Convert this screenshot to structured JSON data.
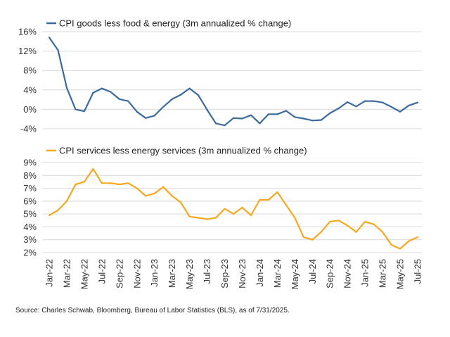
{
  "chart_data": [
    {
      "type": "line",
      "title": "",
      "xlabel": "",
      "ylabel": "",
      "legend": "CPI goods less food & energy (3m annualized % change)",
      "color": "#3b6aa0",
      "ylim": [
        -4,
        16
      ],
      "yticks": [
        "16%",
        "12%",
        "8%",
        "4%",
        "0%",
        "-4%"
      ],
      "ytick_values": [
        16,
        12,
        8,
        4,
        0,
        -4
      ],
      "grid": true,
      "values": [
        14.8,
        12.2,
        4.4,
        0.0,
        -0.4,
        3.4,
        4.3,
        3.6,
        2.1,
        1.7,
        -0.5,
        -1.8,
        -1.3,
        0.5,
        2.1,
        3.0,
        4.3,
        2.9,
        -0.1,
        -2.9,
        -3.3,
        -1.8,
        -1.9,
        -1.2,
        -2.9,
        -1.0,
        -1.0,
        -0.3,
        -1.6,
        -1.9,
        -2.3,
        -2.2,
        -0.8,
        0.2,
        1.5,
        0.6,
        1.7,
        1.7,
        1.4,
        0.5,
        -0.5,
        0.8,
        1.4
      ]
    },
    {
      "type": "line",
      "title": "",
      "xlabel": "",
      "ylabel": "",
      "legend": "CPI services less energy services (3m annualized % change)",
      "color": "#f6a821",
      "ylim": [
        2,
        9
      ],
      "yticks": [
        "9%",
        "8%",
        "7%",
        "6%",
        "5%",
        "4%",
        "3%",
        "2%"
      ],
      "ytick_values": [
        9,
        8,
        7,
        6,
        5,
        4,
        3,
        2
      ],
      "grid": true,
      "values": [
        4.9,
        5.3,
        6.0,
        7.3,
        7.5,
        8.5,
        7.4,
        7.4,
        7.3,
        7.4,
        7.0,
        6.4,
        6.6,
        7.1,
        6.4,
        5.9,
        4.8,
        4.7,
        4.6,
        4.7,
        5.4,
        5.0,
        5.5,
        4.9,
        6.1,
        6.1,
        6.7,
        5.7,
        4.7,
        3.2,
        3.0,
        3.6,
        4.4,
        4.5,
        4.1,
        3.6,
        4.4,
        4.2,
        3.6,
        2.6,
        2.3,
        2.9,
        3.2
      ]
    }
  ],
  "x_labels": [
    "Jan-22",
    "Mar-22",
    "May-22",
    "Jul-22",
    "Sep-22",
    "Nov-22",
    "Jan-23",
    "Mar-23",
    "May-23",
    "Jul-23",
    "Sep-23",
    "Nov-23",
    "Jan-24",
    "Mar-24",
    "May-24",
    "Jul-24",
    "Sep-24",
    "Nov-24",
    "Jan-25",
    "Mar-25",
    "May-25",
    "Jul-25"
  ],
  "source": "Source: Charles Schwab, Bloomberg, Bureau of Labor Statistics (BLS), as of 7/31/2025."
}
